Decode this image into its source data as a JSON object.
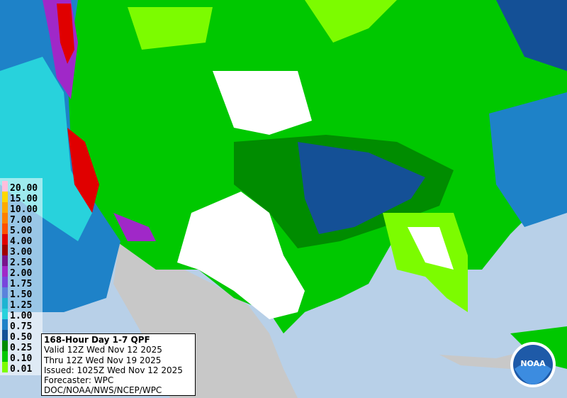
{
  "legend": {
    "items": [
      {
        "label": "20.00",
        "color": "#ffbedc"
      },
      {
        "label": "15.00",
        "color": "#ffd700"
      },
      {
        "label": "10.00",
        "color": "#ffaa00"
      },
      {
        "label": "7.00",
        "color": "#ff8000"
      },
      {
        "label": "5.00",
        "color": "#ff5000"
      },
      {
        "label": "4.00",
        "color": "#e00000"
      },
      {
        "label": "3.00",
        "color": "#a00000"
      },
      {
        "label": "2.50",
        "color": "#78148c"
      },
      {
        "label": "2.00",
        "color": "#a028c8"
      },
      {
        "label": "1.75",
        "color": "#7846dc"
      },
      {
        "label": "1.50",
        "color": "#5a82dc"
      },
      {
        "label": "1.25",
        "color": "#1eb4d2"
      },
      {
        "label": "1.00",
        "color": "#28d2dc"
      },
      {
        "label": "0.75",
        "color": "#1e82c8"
      },
      {
        "label": "0.50",
        "color": "#145096"
      },
      {
        "label": "0.25",
        "color": "#008c00"
      },
      {
        "label": "0.10",
        "color": "#00c800"
      },
      {
        "label": "0.01",
        "color": "#7cfc00"
      }
    ]
  },
  "info": {
    "title": "168-Hour Day 1-7 QPF",
    "lines": [
      "Valid 12Z Wed Nov 12 2025",
      "Thru 12Z Wed Nov 19 2025",
      "Issued: 1025Z Wed Nov 12 2025",
      "Forecaster: WPC",
      "DOC/NOAA/NWS/NCEP/WPC"
    ]
  },
  "logo": {
    "text": "NOAA"
  }
}
